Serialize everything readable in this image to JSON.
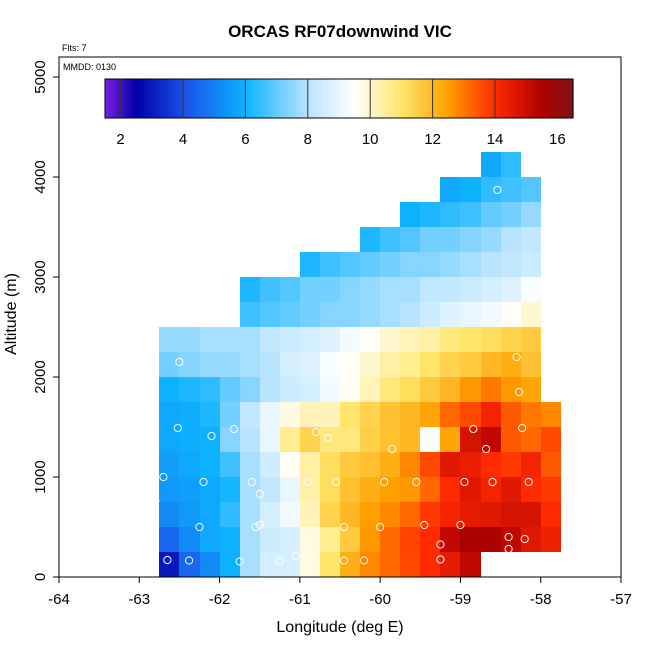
{
  "chart_data": {
    "type": "heatmap",
    "title": "ORCAS RF07downwind VIC",
    "flights_label": "Flts: 7",
    "date_label": "MMDD: 0130",
    "xlabel": "Longitude (deg E)",
    "ylabel": "Altitude (m)",
    "xlim": [
      -64,
      -57
    ],
    "ylim": [
      0,
      5200
    ],
    "xticks": [
      -64,
      -63,
      -62,
      -61,
      -60,
      -59,
      -58,
      -57
    ],
    "yticks": [
      0,
      1000,
      2000,
      3000,
      4000,
      5000
    ],
    "cell_width_deg": 0.25,
    "cell_height_m": 250,
    "colorbar": {
      "range": [
        1.5,
        16.5
      ],
      "ticks": [
        2,
        4,
        6,
        8,
        10,
        12,
        14,
        16
      ],
      "palette": [
        "#7d1fe6",
        "#0000a8",
        "#1a4fe8",
        "#0db2ff",
        "#b8e4ff",
        "#ffffff",
        "#ffe66b",
        "#ffa000",
        "#ff2a00",
        "#b00000",
        "#801515"
      ],
      "palette_stops": [
        1.5,
        2.5,
        4.0,
        6.0,
        8.0,
        9.5,
        11.0,
        12.5,
        14.0,
        15.5,
        16.5
      ]
    },
    "rows": [
      {
        "altitude_bottom": 0,
        "lon_start": -62.75,
        "values": [
          3.0,
          4.5,
          5.2,
          6.0,
          7.8,
          8.6,
          8.6,
          9.8,
          11.0,
          12.2,
          12.8,
          13.2,
          13.6,
          14.0,
          14.5,
          15.2
        ]
      },
      {
        "altitude_bottom": 250,
        "lon_start": -62.75,
        "values": [
          4.5,
          5.2,
          5.8,
          6.0,
          7.8,
          8.4,
          8.6,
          9.8,
          10.6,
          11.6,
          12.6,
          13.2,
          13.7,
          14.0,
          15.2,
          15.6,
          15.6,
          15.2,
          14.6,
          14.3
        ]
      },
      {
        "altitude_bottom": 500,
        "lon_start": -62.75,
        "values": [
          5.2,
          5.5,
          5.8,
          6.4,
          7.8,
          8.6,
          9.2,
          10.2,
          11.4,
          12.0,
          12.5,
          12.8,
          13.2,
          13.8,
          14.2,
          14.5,
          14.6,
          14.8,
          14.8,
          14.0
        ]
      },
      {
        "altitude_bottom": 750,
        "lon_start": -62.75,
        "values": [
          5.5,
          5.6,
          5.8,
          6.1,
          7.8,
          8.2,
          9.0,
          10.4,
          11.2,
          11.8,
          12.2,
          12.5,
          12.6,
          13.2,
          14.0,
          14.6,
          14.2,
          14.6,
          14.0,
          13.8
        ]
      },
      {
        "altitude_bottom": 1000,
        "lon_start": -62.75,
        "values": [
          5.6,
          5.8,
          6.0,
          6.6,
          7.8,
          8.5,
          9.6,
          10.4,
          11.2,
          11.6,
          11.8,
          12.2,
          12.8,
          13.6,
          14.6,
          14.4,
          14.0,
          13.8,
          14.2,
          13.4
        ]
      },
      {
        "altitude_bottom": 1250,
        "lon_start": -62.75,
        "values": [
          5.8,
          5.9,
          6.0,
          7.4,
          8.0,
          9.0,
          10.6,
          11.4,
          10.8,
          10.8,
          11.5,
          11.8,
          12.0,
          9.4,
          12.4,
          14.8,
          15.2,
          13.4,
          13.2,
          13.6
        ]
      },
      {
        "altitude_bottom": 1500,
        "lon_start": -62.75,
        "values": [
          5.8,
          5.9,
          6.2,
          7.2,
          8.2,
          9.0,
          9.8,
          10.2,
          10.2,
          11.0,
          11.4,
          11.8,
          12.0,
          12.4,
          13.2,
          13.6,
          14.2,
          13.4,
          13.0,
          12.8
        ]
      },
      {
        "altitude_bottom": 1750,
        "lon_start": -62.75,
        "values": [
          6.0,
          6.2,
          6.4,
          7.0,
          7.4,
          8.0,
          8.4,
          8.6,
          9.2,
          9.6,
          10.2,
          10.8,
          11.2,
          11.6,
          12.0,
          12.6,
          13.0,
          12.6,
          12.4
        ]
      },
      {
        "altitude_bottom": 2000,
        "lon_start": -62.75,
        "values": [
          7.2,
          7.4,
          7.6,
          7.6,
          7.8,
          8.0,
          8.6,
          8.8,
          9.4,
          9.6,
          10.0,
          10.4,
          10.6,
          11.0,
          11.4,
          11.6,
          12.0,
          12.2,
          11.8
        ]
      },
      {
        "altitude_bottom": 2250,
        "lon_start": -62.75,
        "values": [
          7.6,
          7.6,
          7.8,
          7.8,
          7.8,
          8.2,
          8.4,
          8.6,
          8.8,
          9.2,
          9.6,
          10.0,
          10.2,
          10.4,
          10.8,
          11.0,
          11.2,
          11.4,
          11.6
        ]
      },
      {
        "altitude_bottom": 2500,
        "lon_start": -61.75,
        "values": [
          6.6,
          6.8,
          7.0,
          7.2,
          7.4,
          7.4,
          7.6,
          7.8,
          8.0,
          8.4,
          8.8,
          9.0,
          9.2,
          9.6,
          10.0
        ]
      },
      {
        "altitude_bottom": 2750,
        "lon_start": -61.75,
        "values": [
          6.2,
          6.6,
          6.8,
          7.2,
          7.2,
          7.4,
          7.6,
          7.8,
          7.8,
          8.2,
          8.2,
          8.4,
          8.6,
          8.8,
          9.4
        ]
      },
      {
        "altitude_bottom": 3000,
        "lon_start": -61.0,
        "values": [
          6.2,
          6.6,
          6.8,
          7.0,
          7.2,
          7.4,
          7.4,
          7.6,
          7.8,
          8.0,
          8.2,
          8.4
        ]
      },
      {
        "altitude_bottom": 3250,
        "lon_start": -60.25,
        "values": [
          6.2,
          6.6,
          6.8,
          7.2,
          7.2,
          7.4,
          7.6,
          8.0,
          8.2
        ]
      },
      {
        "altitude_bottom": 3500,
        "lon_start": -59.75,
        "values": [
          6.0,
          6.2,
          6.4,
          6.6,
          7.0,
          7.2,
          7.6
        ]
      },
      {
        "altitude_bottom": 3750,
        "lon_start": -59.25,
        "values": [
          5.8,
          6.0,
          6.4,
          6.6,
          6.8
        ]
      },
      {
        "altitude_bottom": 4000,
        "lon_start": -58.75,
        "values": [
          5.8,
          6.4
        ]
      }
    ],
    "sample_points": [
      [
        -62.65,
        170
      ],
      [
        -62.38,
        165
      ],
      [
        -61.75,
        155
      ],
      [
        -61.25,
        160
      ],
      [
        -61.05,
        210
      ],
      [
        -60.45,
        165
      ],
      [
        -60.2,
        165
      ],
      [
        -59.25,
        175
      ],
      [
        -59.25,
        325
      ],
      [
        -58.4,
        280
      ],
      [
        -62.85,
        500
      ],
      [
        -62.25,
        500
      ],
      [
        -61.55,
        500
      ],
      [
        -61.5,
        520
      ],
      [
        -60.45,
        500
      ],
      [
        -60.0,
        500
      ],
      [
        -59.45,
        520
      ],
      [
        -59.0,
        520
      ],
      [
        -58.4,
        400
      ],
      [
        -58.2,
        380
      ],
      [
        -62.8,
        760
      ],
      [
        -62.2,
        950
      ],
      [
        -61.6,
        950
      ],
      [
        -61.5,
        830
      ],
      [
        -60.9,
        950
      ],
      [
        -60.55,
        950
      ],
      [
        -59.95,
        950
      ],
      [
        -59.55,
        950
      ],
      [
        -58.95,
        950
      ],
      [
        -58.6,
        950
      ],
      [
        -58.15,
        950
      ],
      [
        -62.7,
        1000
      ],
      [
        -62.52,
        1490
      ],
      [
        -62.1,
        1410
      ],
      [
        -61.82,
        1480
      ],
      [
        -60.8,
        1450
      ],
      [
        -60.65,
        1390
      ],
      [
        -59.85,
        1280
      ],
      [
        -58.84,
        1480
      ],
      [
        -58.68,
        1280
      ],
      [
        -58.23,
        1490
      ],
      [
        -62.5,
        2150
      ],
      [
        -58.3,
        2200
      ],
      [
        -58.27,
        1850
      ],
      [
        -58.54,
        3870
      ]
    ]
  }
}
